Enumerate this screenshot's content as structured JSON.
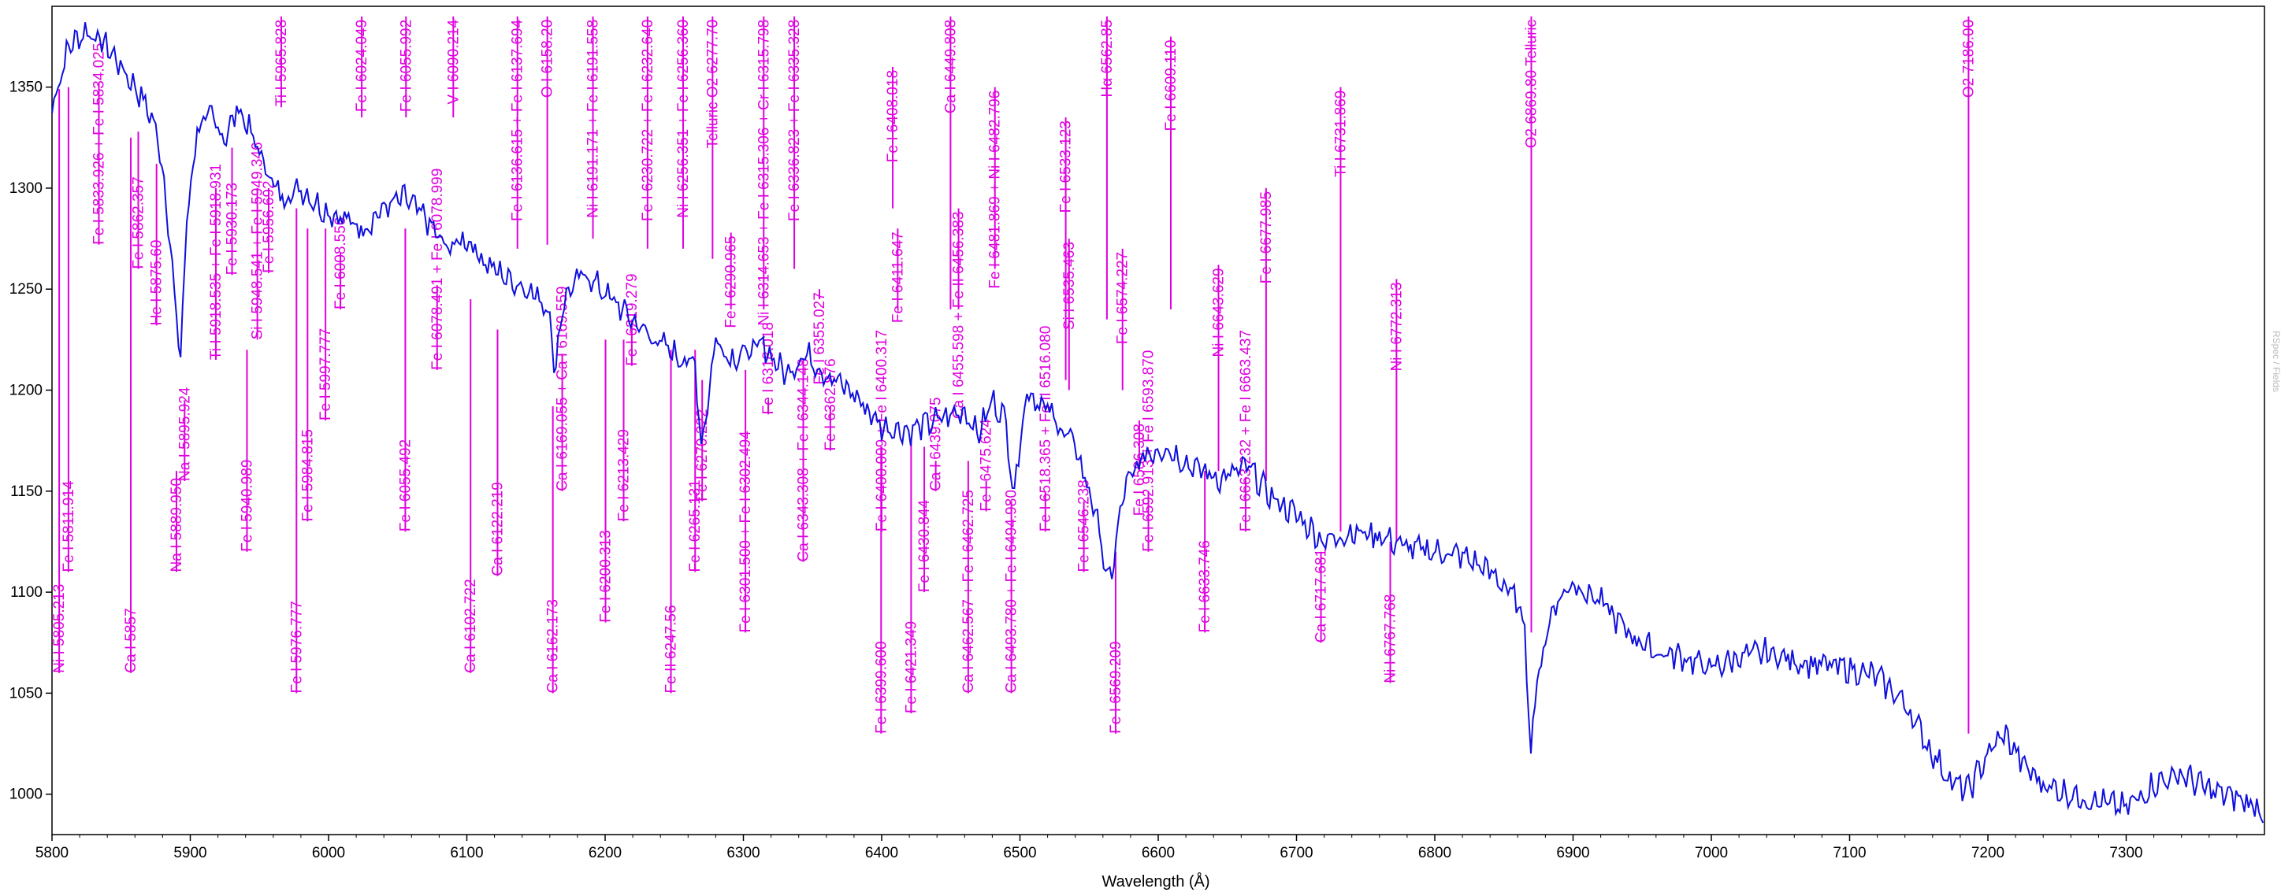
{
  "chart_data": {
    "type": "line",
    "xlabel": "Wavelength (Å)",
    "ylabel": "",
    "xlim": [
      5800,
      7400
    ],
    "ylim": [
      980,
      1390
    ],
    "x_ticks": [
      5800,
      5900,
      6000,
      6100,
      6200,
      6300,
      6400,
      6500,
      6600,
      6700,
      6800,
      6900,
      7000,
      7100,
      7200,
      7300
    ],
    "y_ticks": [
      1000,
      1050,
      1100,
      1150,
      1200,
      1250,
      1300,
      1350
    ],
    "grid": false,
    "side_watermark": "RSpec / Fields",
    "colors": {
      "spectrum": "#1010dd",
      "lines": "#e000e0",
      "axis": "#000000"
    },
    "spectrum": {
      "x": [
        5800,
        5812,
        5825,
        5840,
        5855,
        5865,
        5875,
        5882,
        5890,
        5893,
        5897,
        5905,
        5915,
        5925,
        5935,
        5945,
        5955,
        5965,
        5980,
        5995,
        6010,
        6025,
        6040,
        6055,
        6070,
        6085,
        6100,
        6115,
        6130,
        6145,
        6160,
        6163,
        6170,
        6185,
        6200,
        6215,
        6230,
        6250,
        6265,
        6270,
        6280,
        6290,
        6300,
        6315,
        6330,
        6345,
        6360,
        6380,
        6400,
        6420,
        6440,
        6460,
        6470,
        6480,
        6490,
        6495,
        6505,
        6520,
        6540,
        6550,
        6558,
        6563,
        6567,
        6575,
        6590,
        6605,
        6625,
        6645,
        6665,
        6680,
        6700,
        6720,
        6740,
        6760,
        6780,
        6800,
        6820,
        6840,
        6855,
        6865,
        6869,
        6875,
        6885,
        6900,
        6920,
        6940,
        6960,
        6980,
        7000,
        7020,
        7040,
        7060,
        7080,
        7100,
        7120,
        7140,
        7160,
        7175,
        7186,
        7200,
        7212,
        7225,
        7240,
        7260,
        7280,
        7300,
        7320,
        7340,
        7360,
        7380,
        7400
      ],
      "y": [
        1340,
        1370,
        1378,
        1370,
        1355,
        1345,
        1330,
        1300,
        1235,
        1215,
        1280,
        1330,
        1335,
        1325,
        1340,
        1325,
        1310,
        1295,
        1300,
        1290,
        1285,
        1280,
        1290,
        1295,
        1285,
        1270,
        1275,
        1262,
        1255,
        1250,
        1240,
        1208,
        1245,
        1258,
        1248,
        1238,
        1228,
        1218,
        1212,
        1172,
        1226,
        1216,
        1218,
        1222,
        1208,
        1218,
        1208,
        1198,
        1182,
        1180,
        1185,
        1190,
        1178,
        1195,
        1185,
        1148,
        1200,
        1190,
        1172,
        1150,
        1130,
        1103,
        1112,
        1150,
        1168,
        1172,
        1162,
        1156,
        1162,
        1148,
        1138,
        1125,
        1130,
        1128,
        1122,
        1120,
        1118,
        1110,
        1100,
        1085,
        1022,
        1060,
        1092,
        1105,
        1095,
        1080,
        1070,
        1068,
        1062,
        1068,
        1070,
        1066,
        1064,
        1062,
        1058,
        1045,
        1020,
        1005,
        1002,
        1020,
        1030,
        1015,
        1005,
        1000,
        996,
        993,
        1005,
        1010,
        1002,
        998,
        992
      ]
    },
    "lines": [
      {
        "label": "Ni I 5805.213",
        "wl": 5805.2,
        "tip": 1349,
        "base": 1060
      },
      {
        "label": "Fe I 5811.914",
        "wl": 5811.9,
        "tip": 1350,
        "base": 1110
      },
      {
        "label": "Fe I 5833.926 + Fe I 5834.025",
        "wl": 5833.9,
        "tip": 1352,
        "base": 1272
      },
      {
        "label": "Ca I 5857",
        "wl": 5857,
        "tip": 1325,
        "base": 1060
      },
      {
        "label": "Fe I 5862.357",
        "wl": 5862.4,
        "tip": 1328,
        "base": 1260
      },
      {
        "label": "He I 5875.60",
        "wl": 5875.6,
        "tip": 1312,
        "base": 1232
      },
      {
        "label": "Na I 5889.950",
        "wl": 5890,
        "tip": 1160,
        "base": 1110
      },
      {
        "label": "Na I 5895.924",
        "wl": 5895.9,
        "tip": 1195,
        "base": 1155
      },
      {
        "label": "Ti I 5918.535 + Fe I 5918.931",
        "wl": 5918.5,
        "tip": 1300,
        "base": 1215
      },
      {
        "label": "Fe I 5930.173",
        "wl": 5930.2,
        "tip": 1320,
        "base": 1257
      },
      {
        "label": "Fe I 5940.989",
        "wl": 5941,
        "tip": 1220,
        "base": 1120
      },
      {
        "label": "Si I 5948.541 + Fe I 5949.346",
        "wl": 5948.5,
        "tip": 1300,
        "base": 1225
      },
      {
        "label": "Fe I 5956.692",
        "wl": 5956.7,
        "tip": 1300,
        "base": 1258
      },
      {
        "label": "Ti I 5965.828",
        "wl": 5965.8,
        "tip": 1340,
        "base": 1385
      },
      {
        "label": "Fe I 5976.777",
        "wl": 5976.8,
        "tip": 1290,
        "base": 1050
      },
      {
        "label": "Fe I 5984.815",
        "wl": 5984.8,
        "tip": 1280,
        "base": 1135
      },
      {
        "label": "Fe I 5997.777",
        "wl": 5997.8,
        "tip": 1280,
        "base": 1185
      },
      {
        "label": "Fe I 6008.556",
        "wl": 6008.6,
        "tip": 1268,
        "base": 1240
      },
      {
        "label": "Fe I 6024.049",
        "wl": 6024,
        "tip": 1335,
        "base": 1385
      },
      {
        "label": "Fe I 6055.492",
        "wl": 6055.5,
        "tip": 1280,
        "base": 1130
      },
      {
        "label": "Fe I 6055.992",
        "wl": 6056,
        "tip": 1335,
        "base": 1385
      },
      {
        "label": "Fe I 6078.491 + Fe I 6078.999",
        "wl": 6078.5,
        "tip": 1252,
        "base": 1210
      },
      {
        "label": "V I 6090.214",
        "wl": 6090.2,
        "tip": 1335,
        "base": 1385
      },
      {
        "label": "Ca I 6102.722",
        "wl": 6102.7,
        "tip": 1245,
        "base": 1060
      },
      {
        "label": "Ca I 6122.219",
        "wl": 6122.2,
        "tip": 1230,
        "base": 1108
      },
      {
        "label": "Fe I 6136.615 + Fe I 6137.694",
        "wl": 6136.6,
        "tip": 1270,
        "base": 1385
      },
      {
        "label": "O I 6158.20",
        "wl": 6158.2,
        "tip": 1272,
        "base": 1385
      },
      {
        "label": "Ca I 6162.173",
        "wl": 6162.2,
        "tip": 1192,
        "base": 1050
      },
      {
        "label": "Ca I 6169.055 + Ca I 6169.559",
        "wl": 6169,
        "tip": 1218,
        "base": 1150
      },
      {
        "label": "Ni I 6191.171 + Fe I 6191.558",
        "wl": 6191.2,
        "tip": 1275,
        "base": 1385
      },
      {
        "label": "Fe I 6200.313",
        "wl": 6200.3,
        "tip": 1225,
        "base": 1085
      },
      {
        "label": "Fe I 6213.429",
        "wl": 6213.4,
        "tip": 1225,
        "base": 1135
      },
      {
        "label": "Fe I 6219.279",
        "wl": 6219.3,
        "tip": 1235,
        "base": 1212
      },
      {
        "label": "Fe I 6230.722 + Fe I 6232.640",
        "wl": 6230.7,
        "tip": 1270,
        "base": 1385
      },
      {
        "label": "Fe II 6247.56",
        "wl": 6247.6,
        "tip": 1220,
        "base": 1050
      },
      {
        "label": "Ni I 6256.351 + Fe I 6256.360",
        "wl": 6256.4,
        "tip": 1270,
        "base": 1385
      },
      {
        "label": "Fe I 6265.131",
        "wl": 6265.1,
        "tip": 1220,
        "base": 1110
      },
      {
        "label": "Fe I 6270.222",
        "wl": 6270.2,
        "tip": 1205,
        "base": 1145
      },
      {
        "label": "Telluric O2 6277.70",
        "wl": 6277.7,
        "tip": 1265,
        "base": 1385
      },
      {
        "label": "Fe I 6290.965",
        "wl": 6291,
        "tip": 1240,
        "base": 1278
      },
      {
        "label": "Fe I 6301.500 + Fe I 6302.494",
        "wl": 6301.5,
        "tip": 1210,
        "base": 1080
      },
      {
        "label": "Ni I 6314.653 + Fe I 6315.306 + Cr I 6315.798",
        "wl": 6314.7,
        "tip": 1240,
        "base": 1385
      },
      {
        "label": "Fe I 6318.018",
        "wl": 6318,
        "tip": 1195,
        "base": 1188
      },
      {
        "label": "Ca I 6343.308 + Fe I 6344.148",
        "wl": 6343.3,
        "tip": 1215,
        "base": 1115
      },
      {
        "label": "Fe I 6336.823 + Fe I 6335.328",
        "wl": 6336.8,
        "tip": 1260,
        "base": 1385
      },
      {
        "label": "Fe I 6355.027",
        "wl": 6355,
        "tip": 1245,
        "base": 1250
      },
      {
        "label": "Fe I 6362.876",
        "wl": 6362.9,
        "tip": 1192,
        "base": 1170
      },
      {
        "label": "Fe I 6399.600",
        "wl": 6399.6,
        "tip": 1172,
        "base": 1030
      },
      {
        "label": "Fe I 6400.009 + Fe I 6400.317",
        "wl": 6400,
        "tip": 1172,
        "base": 1130
      },
      {
        "label": "Fe I 6408.018",
        "wl": 6408,
        "tip": 1290,
        "base": 1360
      },
      {
        "label": "Fe I 6411.647",
        "wl": 6411.6,
        "tip": 1240,
        "base": 1280
      },
      {
        "label": "Fe I 6421.349",
        "wl": 6421.3,
        "tip": 1175,
        "base": 1040
      },
      {
        "label": "Fe I 6430.844",
        "wl": 6430.8,
        "tip": 1172,
        "base": 1100
      },
      {
        "label": "Ca I 6439.075",
        "wl": 6439.1,
        "tip": 1165,
        "base": 1150
      },
      {
        "label": "Ca I 6449.808",
        "wl": 6449.8,
        "tip": 1240,
        "base": 1385
      },
      {
        "label": "Ca I 6455.598 + Fe II 6456.383",
        "wl": 6455.6,
        "tip": 1240,
        "base": 1290
      },
      {
        "label": "Ca I 6462.567 + Fe I 6462.725",
        "wl": 6462.6,
        "tip": 1165,
        "base": 1050
      },
      {
        "label": "Fe I 6475.624",
        "wl": 6475.6,
        "tip": 1155,
        "base": 1140
      },
      {
        "label": "Fe I 6481.869 + Ni I 6482.796",
        "wl": 6481.9,
        "tip": 1260,
        "base": 1350
      },
      {
        "label": "Ca I 6493.780 + Fe I 6494.980",
        "wl": 6493.8,
        "tip": 1145,
        "base": 1050
      },
      {
        "label": "Fe I 6518.365 + Fe II 6516.080",
        "wl": 6518.4,
        "tip": 1150,
        "base": 1130
      },
      {
        "label": "Fe I 6533.123",
        "wl": 6533.1,
        "tip": 1205,
        "base": 1335
      },
      {
        "label": "Si I 6535.463",
        "wl": 6535.5,
        "tip": 1200,
        "base": 1275
      },
      {
        "label": "Fe I 6546.238",
        "wl": 6546.2,
        "tip": 1145,
        "base": 1110
      },
      {
        "label": "Hα 6562.85",
        "wl": 6562.9,
        "tip": 1235,
        "base": 1385
      },
      {
        "label": "Fe I 6569.209",
        "wl": 6569.2,
        "tip": 1120,
        "base": 1030
      },
      {
        "label": "Fe I 6574.227",
        "wl": 6574.2,
        "tip": 1200,
        "base": 1270
      },
      {
        "label": "Fe I 6586.308",
        "wl": 6586.3,
        "tip": 1160,
        "base": 1185
      },
      {
        "label": "Fe I 6592.913 + Fe I 6593.870",
        "wl": 6592.9,
        "tip": 1150,
        "base": 1120
      },
      {
        "label": "Fe I 6609.110",
        "wl": 6609.1,
        "tip": 1240,
        "base": 1375
      },
      {
        "label": "Fe I 6633.746",
        "wl": 6633.7,
        "tip": 1160,
        "base": 1080
      },
      {
        "label": "Ni I 6643.629",
        "wl": 6643.6,
        "tip": 1160,
        "base": 1262
      },
      {
        "label": "Fe I 6663.232 + Fe I 6663.437",
        "wl": 6663.2,
        "tip": 1157,
        "base": 1130
      },
      {
        "label": "Fe I 6677.985",
        "wl": 6678,
        "tip": 1155,
        "base": 1300
      },
      {
        "label": "Ca I 6717.681",
        "wl": 6717.7,
        "tip": 1120,
        "base": 1075
      },
      {
        "label": "Ti I 6731.869",
        "wl": 6731.9,
        "tip": 1130,
        "base": 1350
      },
      {
        "label": "Ni I 6767.768",
        "wl": 6767.8,
        "tip": 1125,
        "base": 1055
      },
      {
        "label": "Ni I 6772.313",
        "wl": 6772.3,
        "tip": 1125,
        "base": 1255
      },
      {
        "label": "O2 6869.80 Telluric",
        "wl": 6869.8,
        "tip": 1080,
        "base": 1385
      },
      {
        "label": "O2 7186.00",
        "wl": 7186,
        "tip": 1030,
        "base": 1385
      }
    ]
  }
}
